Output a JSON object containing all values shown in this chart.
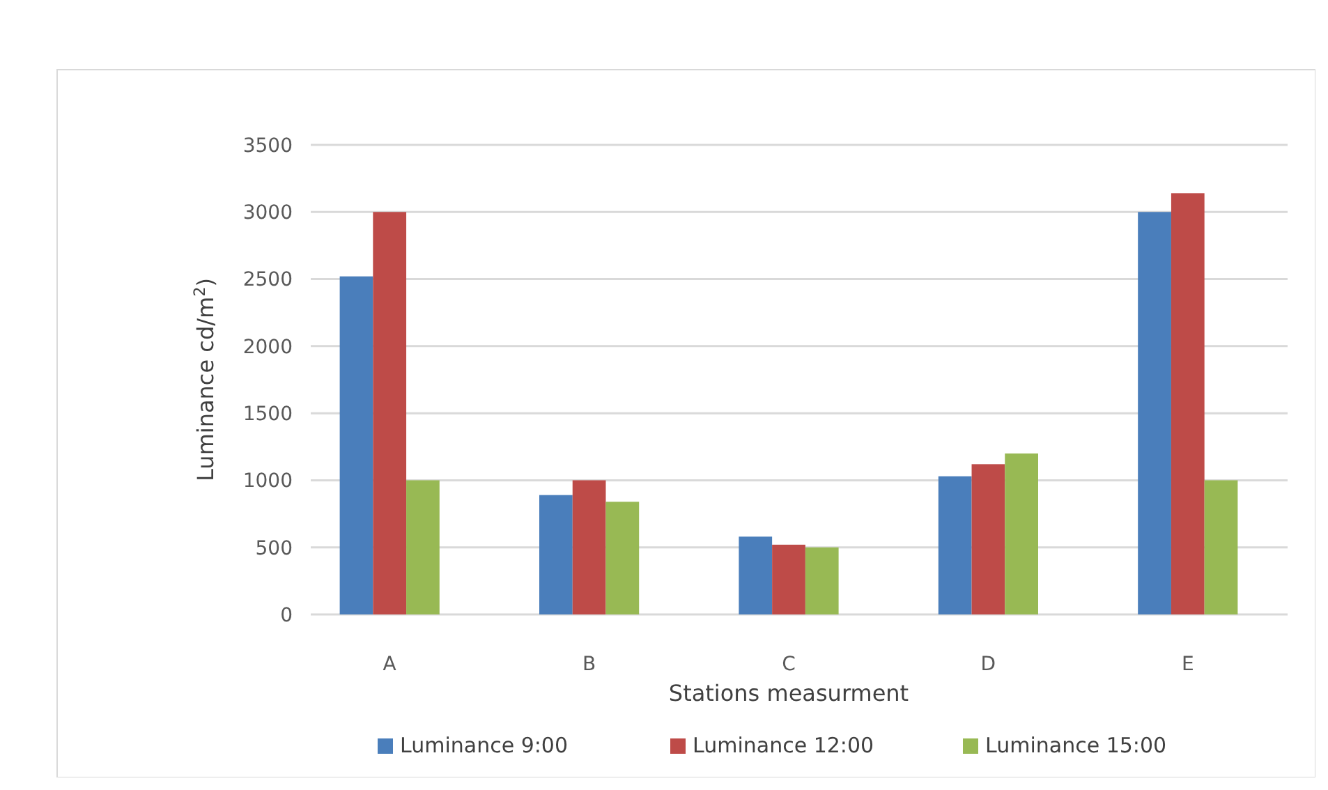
{
  "chart_data": {
    "type": "bar",
    "xlabel": "Stations measurment",
    "ylabel": "Luminance cd/m$^{2}$)",
    "categories": [
      "A",
      "B",
      "C",
      "D",
      "E"
    ],
    "series": [
      {
        "name": "Luminance 9:00",
        "color": "#4a7ebb",
        "values": [
          2520,
          890,
          580,
          1030,
          3000
        ]
      },
      {
        "name": "Luminance 12:00",
        "color": "#be4b48",
        "values": [
          3000,
          1000,
          520,
          1120,
          3140
        ]
      },
      {
        "name": "Luminance 15:00",
        "color": "#98b954",
        "values": [
          1000,
          840,
          500,
          1200,
          1000
        ]
      }
    ],
    "ylim": [
      0,
      3500
    ],
    "yticks": [
      0,
      500,
      1000,
      1500,
      2000,
      2500,
      3000,
      3500
    ],
    "grid": "y",
    "legend": "bottom"
  }
}
